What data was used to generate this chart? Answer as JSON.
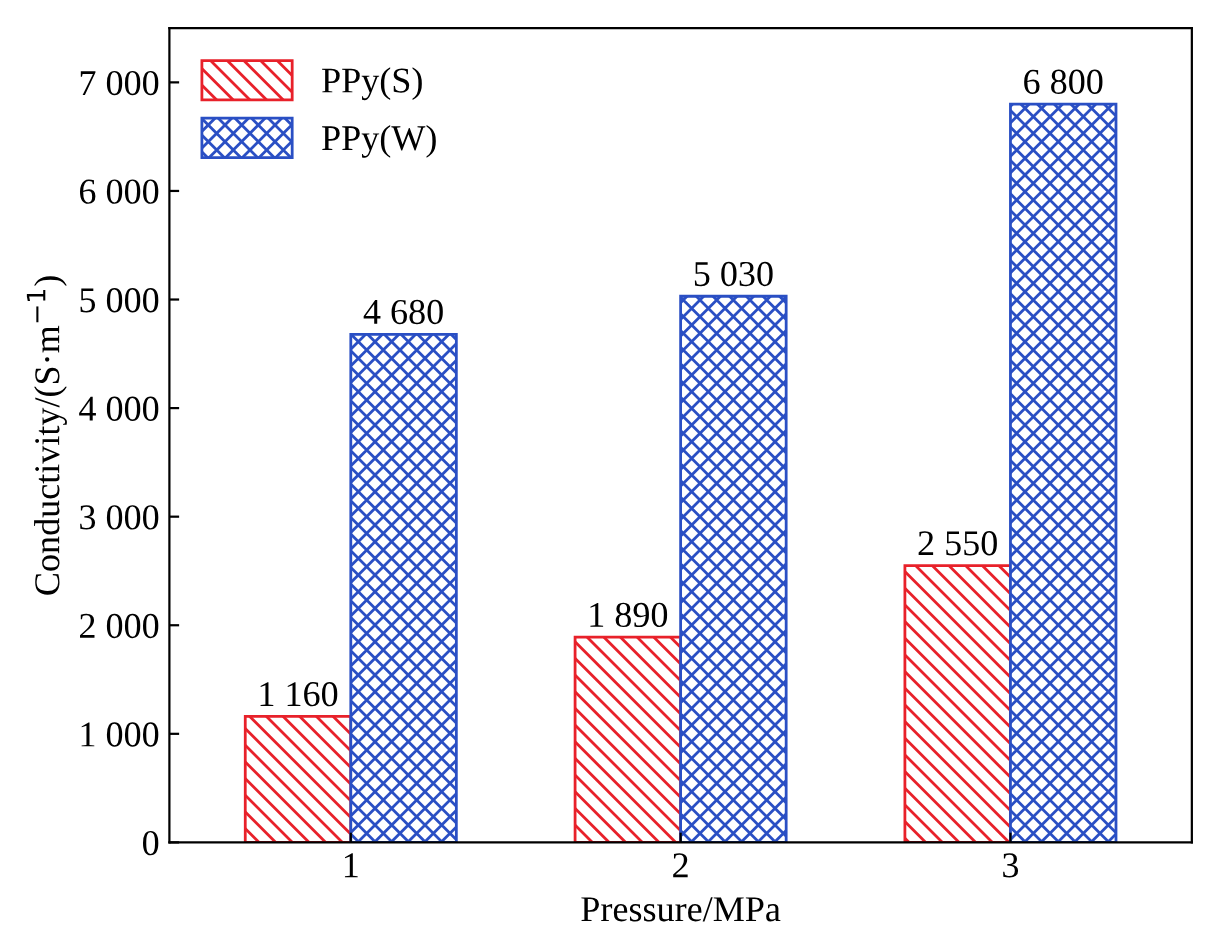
{
  "chart_data": {
    "type": "bar",
    "xlabel": "Pressure/MPa",
    "ylabel": "Conductivity/(S·m$^{−1}$)",
    "categories": [
      "1",
      "2",
      "3"
    ],
    "series": [
      {
        "name": "PPy(S)",
        "color": "#e8212a",
        "values": [
          1160,
          1890,
          2550
        ],
        "value_labels": [
          "1 160",
          "1 890",
          "2 550"
        ]
      },
      {
        "name": "PPy(W)",
        "color": "#2a4fc4",
        "values": [
          4680,
          5030,
          6800
        ],
        "value_labels": [
          "4 680",
          "5 030",
          "6 800"
        ]
      }
    ],
    "ylim": [
      0,
      7500
    ],
    "yticks": [
      0,
      {
        "value": 1000,
        "label": "1 000"
      },
      {
        "value": 2000,
        "label": "2 000"
      },
      {
        "value": 3000,
        "label": "3 000"
      },
      {
        "value": 4000,
        "label": "4 000"
      },
      {
        "value": 5000,
        "label": "5 000"
      },
      {
        "value": 6000,
        "label": "6 000"
      },
      {
        "value": 7000,
        "label": "7 000"
      }
    ],
    "legend": "top left",
    "grid": false
  }
}
